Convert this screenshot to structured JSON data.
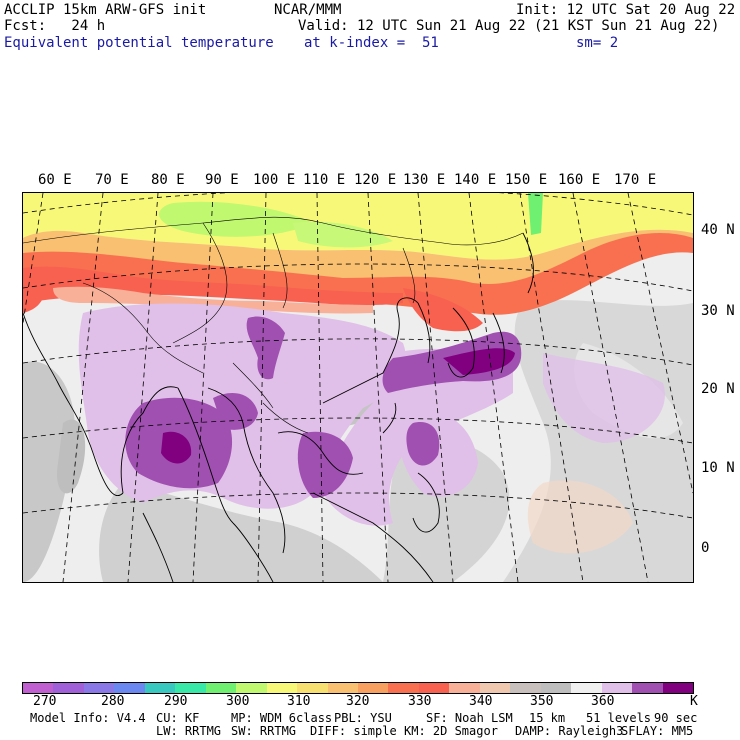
{
  "header": {
    "line1_left": "ACCLIP 15km ARW-GFS init",
    "line1_center": "NCAR/MMM",
    "line1_right": "Init: 12 UTC Sat 20 Aug 22",
    "line2_left": "Fcst:   24 h",
    "line2_right": "Valid: 12 UTC Sun 21 Aug 22 (21 KST Sun 21 Aug 22)",
    "line3_left": "Equivalent potential temperature",
    "line3_center": "at k-index =  51",
    "line3_right": "sm= 2"
  },
  "map": {
    "longitude_labels": [
      "60 E",
      "70 E",
      "80 E",
      "90 E",
      "100 E",
      "110 E",
      "120 E",
      "130 E",
      "140 E",
      "150 E",
      "160 E",
      "170 E"
    ],
    "latitude_labels": [
      "40 N",
      "30 N",
      "20 N",
      "10 N",
      "0"
    ]
  },
  "colorbar": {
    "colors": [
      "#c060d0",
      "#a060d8",
      "#8a78e6",
      "#6a88f0",
      "#38c8c0",
      "#38e8a8",
      "#70f070",
      "#c0f870",
      "#f8f878",
      "#f8e070",
      "#f8c070",
      "#f8a060",
      "#f87050",
      "#f86050",
      "#f8b098",
      "#f0c8b0",
      "#c8c0bc",
      "#bebebe",
      "#f0f0f0",
      "#e0c0e8",
      "#a050b0",
      "#800080"
    ],
    "tick_labels": [
      "270",
      "280",
      "290",
      "300",
      "310",
      "320",
      "330",
      "340",
      "350",
      "360"
    ],
    "unit": "K"
  },
  "footer": {
    "line1": [
      "Model Info: V4.4",
      "CU: KF",
      "MP: WDM 6class",
      "PBL: YSU",
      "SF: Noah LSM",
      "15 km",
      "51 levels",
      "90 sec"
    ],
    "line2": [
      "LW: RRTMG",
      "SW: RRTMG",
      "DIFF: simple",
      "KM: 2D Smagor",
      "DAMP: Rayleigh3",
      "SFLAY: MM5"
    ]
  }
}
